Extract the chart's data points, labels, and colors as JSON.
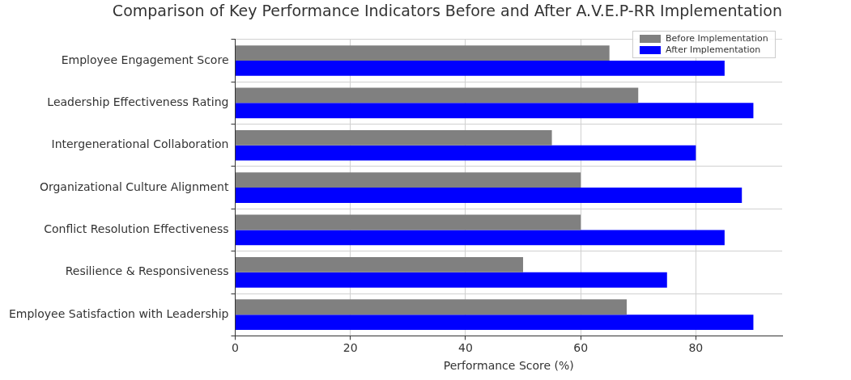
{
  "chart_data": {
    "type": "bar",
    "orientation": "horizontal",
    "title": "Comparison of Key Performance Indicators Before and After A.V.E.P-RR Implementation",
    "xlabel": "Performance Score (%)",
    "categories": [
      "Employee Engagement Score",
      "Leadership Effectiveness Rating",
      "Intergenerational Collaboration",
      "Organizational Culture Alignment",
      "Conflict Resolution Effectiveness",
      "Resilience & Responsiveness",
      "Employee Satisfaction with Leadership"
    ],
    "series": [
      {
        "name": "Before Implementation",
        "color": "#808080",
        "values": [
          65,
          70,
          55,
          60,
          60,
          50,
          68
        ]
      },
      {
        "name": "After Implementation",
        "color": "#0000ff",
        "values": [
          85,
          90,
          80,
          88,
          85,
          75,
          90
        ]
      }
    ],
    "xlim": [
      0,
      95
    ],
    "xticks": [
      0,
      20,
      40,
      60,
      80
    ],
    "grid": true,
    "legend": "top right"
  }
}
